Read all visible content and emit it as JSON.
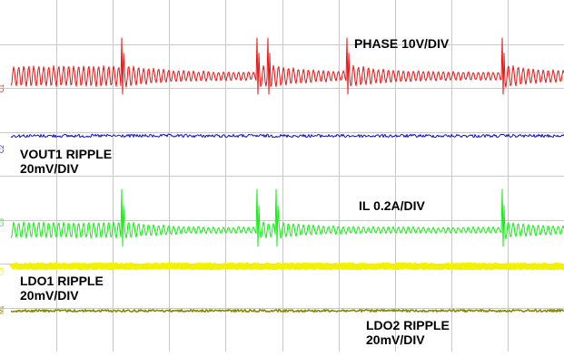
{
  "chart_data": {
    "type": "line",
    "title": "",
    "grid": true,
    "grid_divisions": {
      "horizontal": 10,
      "vertical": 8
    },
    "colors": {
      "background": "#ffffff",
      "grid": "#c8c8c8",
      "ch1": "#ee1111",
      "ch2": "#1010cc",
      "ch3": "#11ee11",
      "ch4": "#f2f200",
      "ch5": "#888800"
    },
    "channel_markers": [
      "C1",
      "C2",
      "C3",
      "C4",
      "M1"
    ],
    "series": [
      {
        "id": "phase",
        "label": "PHASE 10V/DIV",
        "color": "#ee1111",
        "waveform": "switch-node ringing",
        "spike_time_div": [
          2.15,
          4.55,
          4.75,
          6.15,
          8.9
        ]
      },
      {
        "id": "vout1",
        "label": [
          "VOUT1 RIPPLE",
          "20mV/DIV"
        ],
        "color": "#1010cc",
        "waveform": "flat ripple"
      },
      {
        "id": "il",
        "label": "IL 0.2A/DIV",
        "color": "#11ee11",
        "waveform": "inductor current ringing",
        "spike_time_div": [
          2.15,
          4.55,
          4.9,
          8.9
        ]
      },
      {
        "id": "ldo1",
        "label": [
          "LDO1 RIPPLE",
          "20mV/DIV"
        ],
        "color": "#f2f200",
        "waveform": "flat ripple"
      },
      {
        "id": "ldo2",
        "label": [
          "LDO2 RIPPLE",
          "20mV/DIV"
        ],
        "color": "#888800",
        "waveform": "flat ripple"
      }
    ]
  }
}
